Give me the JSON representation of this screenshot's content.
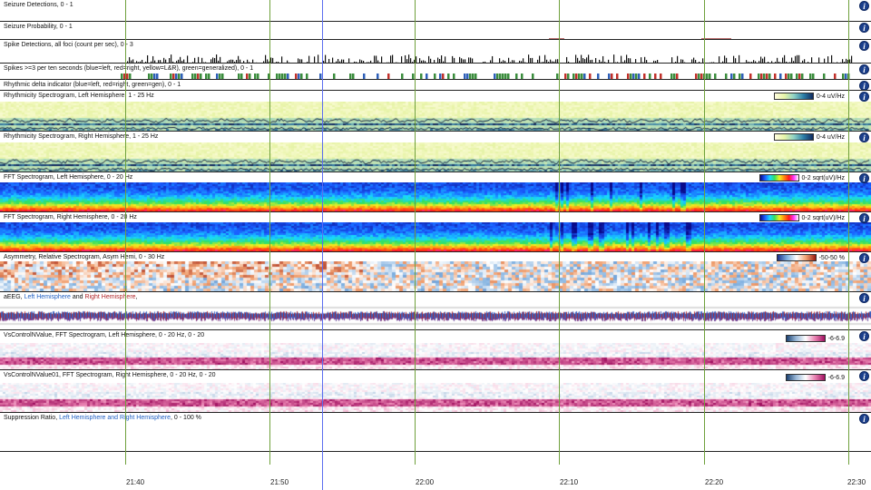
{
  "panels": [
    {
      "id": "seizure-detections",
      "title": "Seizure Detections, 0 - 1"
    },
    {
      "id": "seizure-probability",
      "title": "Seizure Probability, 0 - 1"
    },
    {
      "id": "spike-detections",
      "title": "Spike Detections, all foci (count per sec), 0 - 3"
    },
    {
      "id": "spikes-per-ten",
      "title": "Spikes >=3 per ten seconds (blue=left, red=right, yellow=L&R), green=generalized),  0 - 1"
    },
    {
      "id": "rhythmic-delta",
      "title": "Rhythmic delta indicator (blue=left, red=right, green=gen),  0 - 1"
    },
    {
      "id": "rhythmicity-left",
      "title": "Rhythmicity Spectrogram, Left Hemisphere, 1 - 25 Hz",
      "legend": "0-4 uV/Hz"
    },
    {
      "id": "rhythmicity-right",
      "title": "Rhythmicity Spectrogram, Right Hemisphere, 1 - 25 Hz",
      "legend": "0-4 uV/Hz"
    },
    {
      "id": "fft-left",
      "title": "FFT Spectrogram, Left Hemisphere, 0 - 20 Hz",
      "legend": "0-2 sqrt(uV)/Hz"
    },
    {
      "id": "fft-right",
      "title": "FFT Spectrogram, Right Hemisphere, 0 - 20 Hz",
      "legend": "0-2 sqrt(uV)/Hz"
    },
    {
      "id": "asymmetry",
      "title": "Asymmetry, Relative Spectrogram, Asym Hemi, 0 - 30 Hz",
      "legend": "-50-50 %"
    },
    {
      "id": "aeeg",
      "title_parts": [
        "aEEG, ",
        "Left Hemisphere",
        " and ",
        "Right Hemisphere",
        ","
      ]
    },
    {
      "id": "vscontrol-left",
      "title": "VsControlNValue, FFT Spectrogram, Left Hemisphere, 0 - 20 Hz, 0 - 20",
      "legend": "-6-6.9"
    },
    {
      "id": "vscontrol-right",
      "title": "VsControlNValue01, FFT Spectrogram, Right Hemisphere, 0 - 20 Hz, 0 - 20",
      "legend": "-6-6.9"
    },
    {
      "id": "suppression",
      "title_parts": [
        "Suppression Ratio, ",
        "Left Hemisphere and Right Hemisphere",
        ",  0 - 100 %"
      ]
    }
  ],
  "info_label": "i",
  "time_ticks": [
    "21:40",
    "21:50",
    "22:00",
    "22:10",
    "22:20",
    "22:30"
  ],
  "colors": {
    "grid": "#6fa03c",
    "cursor": "#5b6df0",
    "info": "#1b3f8c",
    "left": "#1f5fc2",
    "right": "#b1262a"
  }
}
